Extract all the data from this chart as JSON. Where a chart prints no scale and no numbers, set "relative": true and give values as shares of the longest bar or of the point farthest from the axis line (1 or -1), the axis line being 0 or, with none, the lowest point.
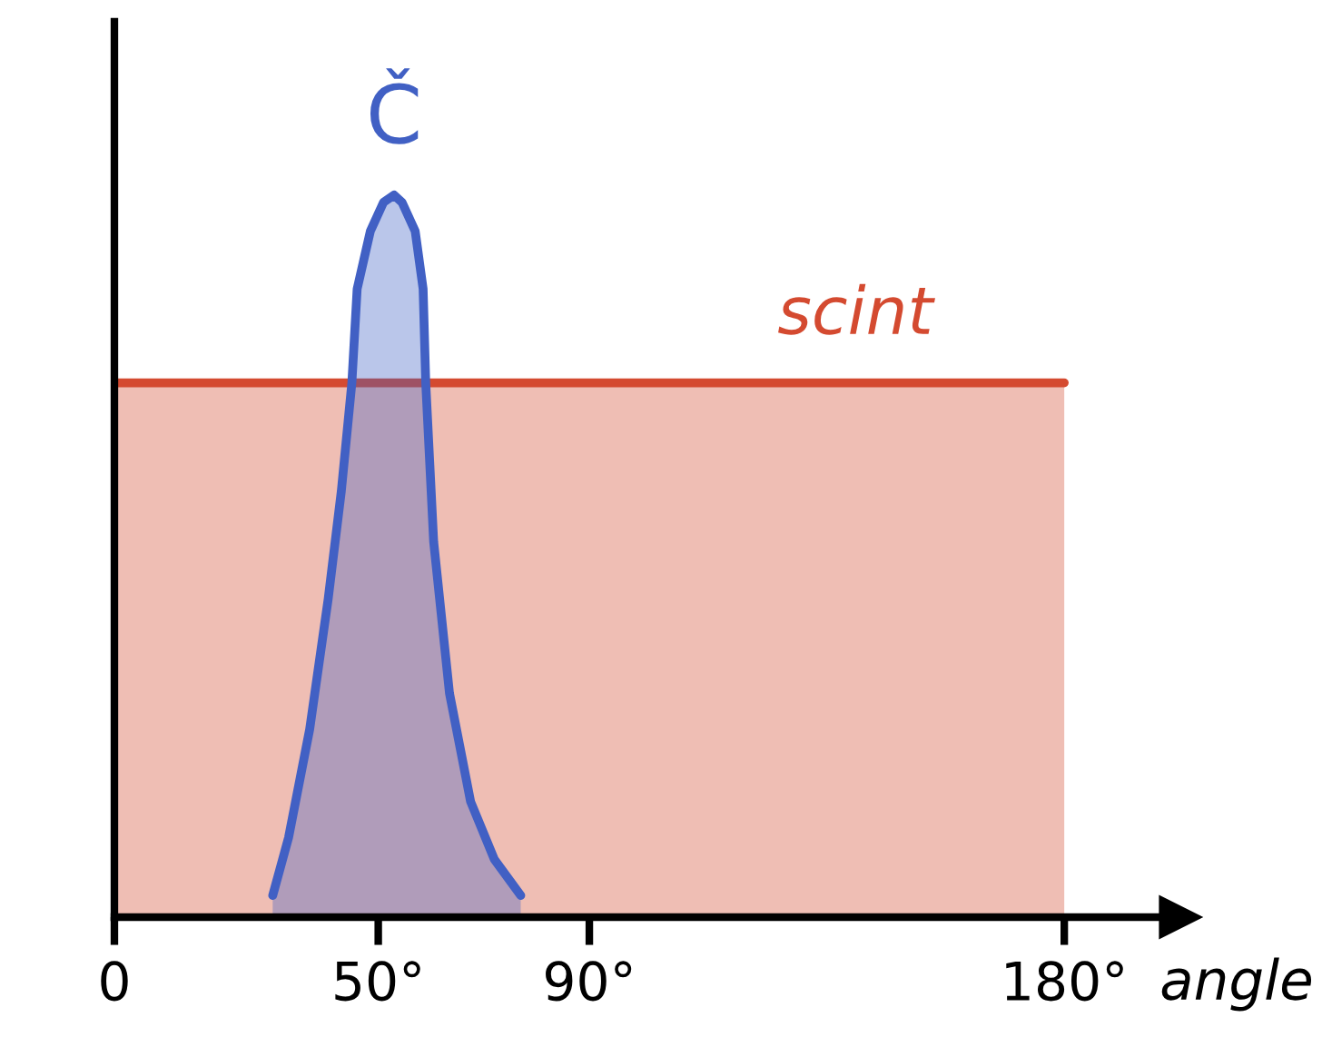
{
  "chart_data": {
    "type": "area",
    "relative": true,
    "xlabel": "angle",
    "xlim": [
      0,
      202
    ],
    "xticks": [
      0,
      {
        "value": 50,
        "label": "50°"
      },
      {
        "value": 90,
        "label": "90°"
      },
      {
        "value": 180,
        "label": "180°"
      }
    ],
    "tick_labels": "x",
    "grid": false,
    "legend": false,
    "marker": "none",
    "line_style": "solid",
    "series": [
      {
        "name": "scint",
        "color": "#d44a30",
        "x": [
          0,
          180
        ],
        "values": [
          0.74,
          0.74
        ]
      },
      {
        "name": "Č",
        "color": "#4160c4",
        "x": [
          30,
          33,
          37,
          40.5,
          43,
          45,
          46,
          48.5,
          51,
          53,
          54.5,
          57,
          58.5,
          59,
          60.5,
          63.5,
          67.5,
          72,
          77
        ],
        "values": [
          0.03,
          0.11,
          0.26,
          0.44,
          0.59,
          0.74,
          0.87,
          0.95,
          0.99,
          1,
          0.99,
          0.95,
          0.87,
          0.74,
          0.52,
          0.31,
          0.16,
          0.08,
          0.03
        ]
      }
    ]
  }
}
